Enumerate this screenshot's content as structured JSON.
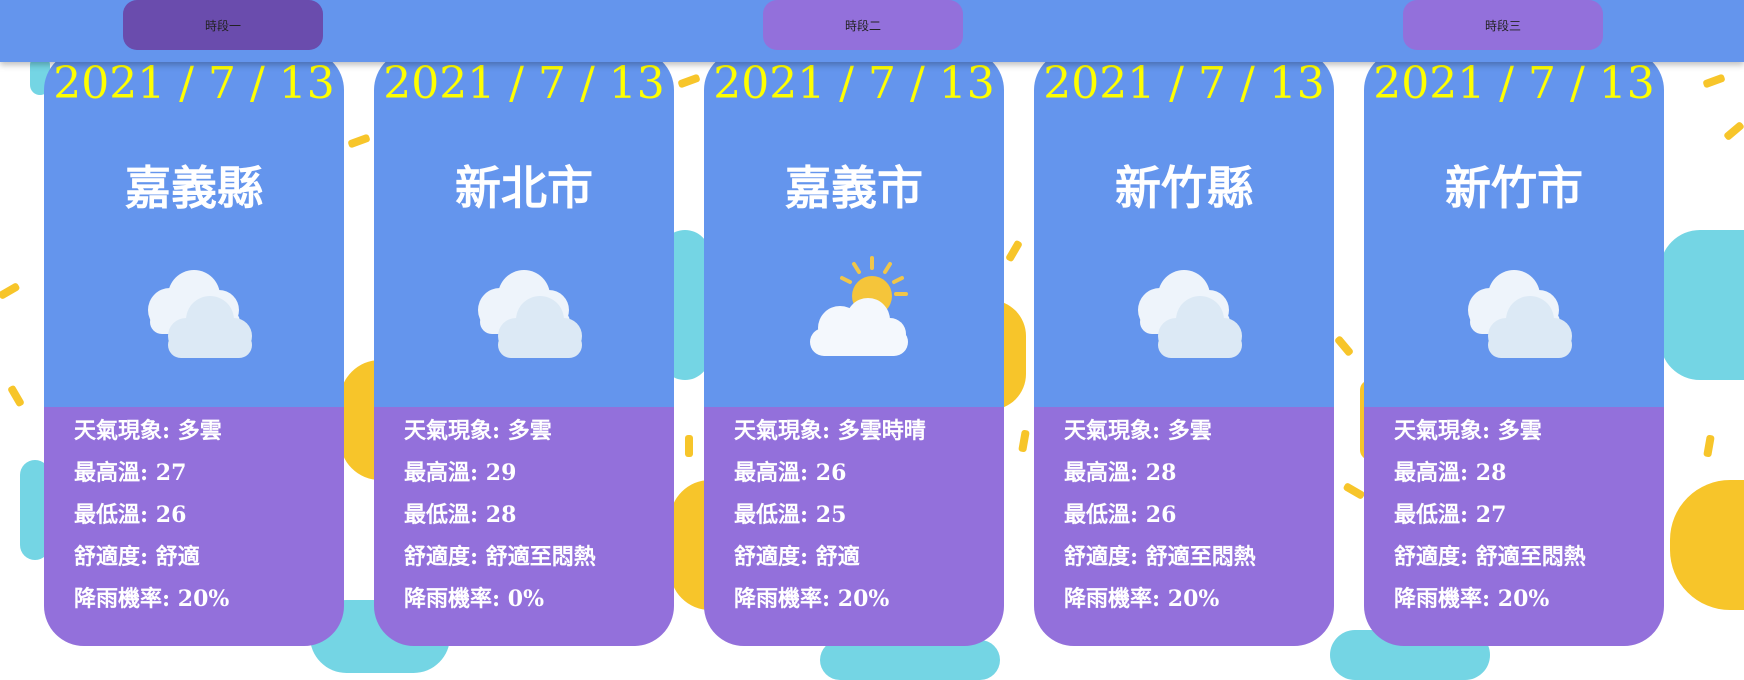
{
  "periods": [
    {
      "label": "時段一",
      "active": true
    },
    {
      "label": "時段二",
      "active": false
    },
    {
      "label": "時段三",
      "active": false
    }
  ],
  "labels": {
    "weather": "天氣現象",
    "max_temp": "最高溫",
    "min_temp": "最低溫",
    "comfort": "舒適度",
    "rain": "降雨機率",
    "separator": ": "
  },
  "cards": [
    {
      "date": "2021 / 7 / 13",
      "city": "嘉義縣",
      "icon": "cloudy-icon",
      "weather": "多雲",
      "max_temp": "27",
      "min_temp": "26",
      "comfort": "舒適",
      "rain": "20%"
    },
    {
      "date": "2021 / 7 / 13",
      "city": "新北市",
      "icon": "cloudy-icon",
      "weather": "多雲",
      "max_temp": "29",
      "min_temp": "28",
      "comfort": "舒適至悶熱",
      "rain": "0%"
    },
    {
      "date": "2021 / 7 / 13",
      "city": "嘉義市",
      "icon": "partly-sunny-icon",
      "weather": "多雲時晴",
      "max_temp": "26",
      "min_temp": "25",
      "comfort": "舒適",
      "rain": "20%"
    },
    {
      "date": "2021 / 7 / 13",
      "city": "新竹縣",
      "icon": "cloudy-icon",
      "weather": "多雲",
      "max_temp": "28",
      "min_temp": "26",
      "comfort": "舒適至悶熱",
      "rain": "20%"
    },
    {
      "date": "2021 / 7 / 13",
      "city": "新竹市",
      "icon": "cloudy-icon",
      "weather": "多雲",
      "max_temp": "28",
      "min_temp": "27",
      "comfort": "舒適至悶熱",
      "rain": "20%"
    }
  ],
  "colors": {
    "topbar": "#6495ed",
    "button": "#9370db",
    "button_active": "#6a4cad",
    "card_top": "#6495ed",
    "card_bottom": "#9370db",
    "date_text": "#ffff00"
  }
}
